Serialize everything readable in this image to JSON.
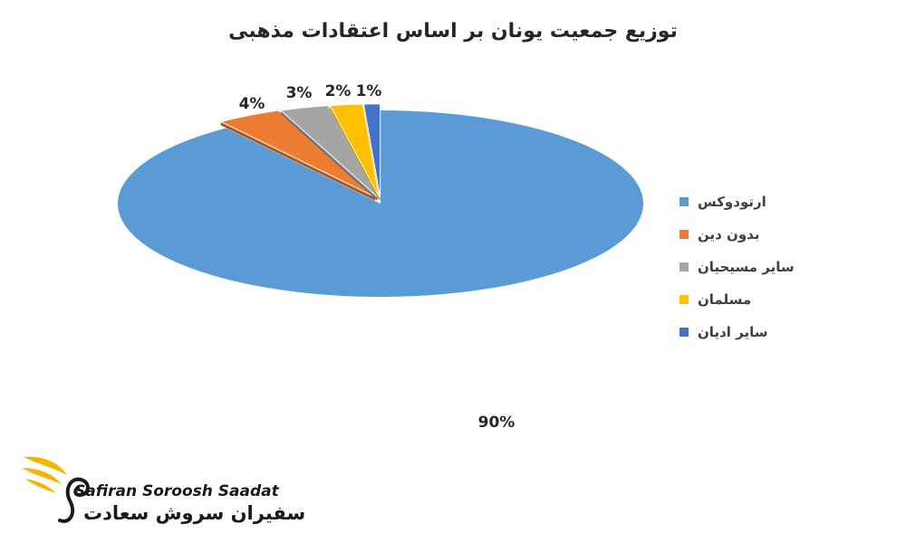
{
  "chart_data": {
    "type": "pie",
    "title": "توزیع جمعیت یونان بر اساس اعتقادات مذهبی",
    "categories": [
      "ارتودوکس",
      "بدون دین",
      "سایر مسیحیان",
      "مسلمان",
      "سایر ادیان"
    ],
    "values": [
      90,
      4,
      3,
      2,
      1
    ],
    "labels": [
      "90%",
      "4%",
      "3%",
      "2%",
      "1%"
    ],
    "colors": [
      "#5b9bd5",
      "#ed7d31",
      "#a5a5a5",
      "#ffc000",
      "#4472c4"
    ],
    "legend_position": "right",
    "style": "3d-exploded"
  },
  "logo": {
    "latin": "Safiran Soroosh Saadat",
    "persian": "سفیران سروش سعادت"
  }
}
